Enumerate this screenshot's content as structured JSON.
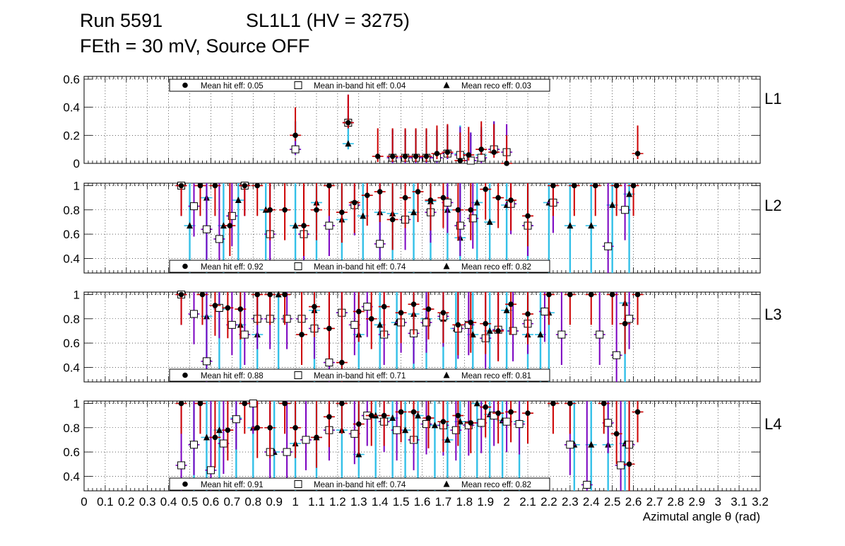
{
  "header": {
    "run": "Run 5591",
    "chamber": "SL1L1 (HV = 3275)",
    "conditions": "FEth = 30 mV, Source OFF"
  },
  "colors": {
    "hit_err": "#cc0000",
    "inband_err": "#7a00c0",
    "reco_err": "#33c0e8",
    "marker": "#000000",
    "grid": "#000000"
  },
  "chart_data": [
    {
      "type": "scatter",
      "panel": "L1",
      "xlim": [
        0,
        3.2
      ],
      "ylim": [
        0,
        0.62
      ],
      "yticks": [
        0,
        0.2,
        0.4,
        0.6
      ],
      "ytick_labels": [
        "0",
        "0.2",
        "0.4",
        "0.6"
      ],
      "legend": {
        "hit": "Mean hit  eff: 0.05",
        "inband": "Mean in-band hit eff: 0.04",
        "reco": "Mean reco eff: 0.03",
        "placement": "top-left"
      },
      "series": [
        {
          "name": "hit",
          "x": [
            1.0,
            1.25,
            1.39,
            1.46,
            1.52,
            1.57,
            1.62,
            1.67,
            1.72,
            1.78,
            1.82,
            1.88,
            1.94,
            2.0,
            2.62
          ],
          "y": [
            0.2,
            0.29,
            0.05,
            0.05,
            0.05,
            0.05,
            0.05,
            0.07,
            0.08,
            0.02,
            0.06,
            0.1,
            0.08,
            0.0,
            0.07
          ]
        },
        {
          "name": "inband",
          "x": [
            1.0,
            1.25,
            1.46,
            1.52,
            1.57,
            1.62,
            1.67,
            1.72,
            1.78,
            1.83,
            1.88,
            1.94,
            2.0
          ],
          "y": [
            0.1,
            0.29,
            0.04,
            0.04,
            0.04,
            0.04,
            0.04,
            0.07,
            0.06,
            0.02,
            0.04,
            0.1,
            0.08
          ]
        },
        {
          "name": "reco",
          "x": [
            1.0,
            1.25,
            1.46,
            1.52,
            1.57,
            1.62,
            1.67,
            1.72,
            1.78,
            1.83,
            1.88,
            1.94
          ],
          "y": [
            0.1,
            0.14,
            0.04,
            0.04,
            0.04,
            0.04,
            0.04,
            0.07,
            0.07,
            0.02,
            0.06,
            0.1
          ]
        }
      ]
    },
    {
      "type": "scatter",
      "panel": "L2",
      "xlim": [
        0,
        3.2
      ],
      "ylim": [
        0.28,
        1.02
      ],
      "yticks": [
        0.4,
        0.6,
        0.8,
        1.0
      ],
      "ytick_labels": [
        "0.4",
        "0.6",
        "0.8",
        "1"
      ],
      "legend": {
        "hit": "Mean hit  eff: 0.92",
        "inband": "Mean in-band hit eff: 0.74",
        "reco": "Mean reco eff: 0.82",
        "placement": "bottom-left"
      },
      "series": [
        {
          "name": "hit",
          "x": [
            0.46,
            0.55,
            0.62,
            0.69,
            0.76,
            0.82,
            0.88,
            0.95,
            1.04,
            1.1,
            1.16,
            1.22,
            1.28,
            1.34,
            1.4,
            1.46,
            1.52,
            1.58,
            1.64,
            1.7,
            1.77,
            1.83,
            1.9,
            1.96,
            2.02,
            2.1,
            2.22,
            2.32,
            2.42,
            2.52,
            2.6
          ],
          "y": [
            1.0,
            1.0,
            1.0,
            0.67,
            1.0,
            1.0,
            0.8,
            0.8,
            0.67,
            0.8,
            1.0,
            0.78,
            0.86,
            0.92,
            0.95,
            0.72,
            0.9,
            0.95,
            0.88,
            0.9,
            0.8,
            0.8,
            0.97,
            0.9,
            0.88,
            0.75,
            1.0,
            1.0,
            1.0,
            1.0,
            1.0
          ]
        },
        {
          "name": "inband",
          "x": [
            0.46,
            0.52,
            0.58,
            0.64,
            0.7,
            0.76,
            0.88,
            1.04,
            1.16,
            1.28,
            1.4,
            1.52,
            1.64,
            1.72,
            1.78,
            1.84,
            2.02,
            2.1,
            2.22,
            2.48,
            2.56
          ],
          "y": [
            1.0,
            0.83,
            0.64,
            0.56,
            0.75,
            1.0,
            0.6,
            0.6,
            0.67,
            0.84,
            0.52,
            0.72,
            0.78,
            0.86,
            0.67,
            0.73,
            0.85,
            0.67,
            0.86,
            0.5,
            0.8
          ]
        },
        {
          "name": "reco",
          "x": [
            0.5,
            0.58,
            0.66,
            0.73,
            0.86,
            1.0,
            1.1,
            1.22,
            1.32,
            1.4,
            1.46,
            1.56,
            1.64,
            1.72,
            1.78,
            1.86,
            1.92,
            2.0,
            2.1,
            2.2,
            2.3,
            2.4,
            2.5,
            2.58
          ],
          "y": [
            0.67,
            0.9,
            0.67,
            0.88,
            0.8,
            0.67,
            0.86,
            0.72,
            0.75,
            0.78,
            0.77,
            0.78,
            0.87,
            0.8,
            0.57,
            0.86,
            0.7,
            0.84,
            0.67,
            0.86,
            0.67,
            0.67,
            0.84,
            0.93
          ]
        }
      ]
    },
    {
      "type": "scatter",
      "panel": "L3",
      "xlim": [
        0,
        3.2
      ],
      "ylim": [
        0.28,
        1.02
      ],
      "yticks": [
        0.4,
        0.6,
        0.8,
        1.0
      ],
      "ytick_labels": [
        "0.4",
        "0.6",
        "0.8",
        "1"
      ],
      "legend": {
        "hit": "Mean hit  eff: 0.88",
        "inband": "Mean in-band hit eff: 0.71",
        "reco": "Mean reco eff: 0.81",
        "placement": "bottom-left"
      },
      "series": [
        {
          "name": "hit",
          "x": [
            0.46,
            0.56,
            0.62,
            0.68,
            0.74,
            0.82,
            0.88,
            0.95,
            1.03,
            1.09,
            1.16,
            1.22,
            1.3,
            1.36,
            1.42,
            1.5,
            1.56,
            1.63,
            1.7,
            1.77,
            1.83,
            1.9,
            1.96,
            2.02,
            2.1,
            2.2,
            2.3,
            2.4,
            2.5,
            2.56,
            2.62
          ],
          "y": [
            1.0,
            1.0,
            0.91,
            0.89,
            0.88,
            1.0,
            1.0,
            1.0,
            0.67,
            0.9,
            0.72,
            0.44,
            0.86,
            0.8,
            0.9,
            0.85,
            0.92,
            0.88,
            0.85,
            0.75,
            0.77,
            0.76,
            0.7,
            0.92,
            0.84,
            1.0,
            1.0,
            1.0,
            1.0,
            0.76,
            1.0
          ]
        },
        {
          "name": "inband",
          "x": [
            0.46,
            0.52,
            0.58,
            0.64,
            0.7,
            0.76,
            0.82,
            0.88,
            0.96,
            1.03,
            1.09,
            1.16,
            1.22,
            1.28,
            1.34,
            1.42,
            1.5,
            1.56,
            1.62,
            1.7,
            1.77,
            1.82,
            1.9,
            1.96,
            2.03,
            2.1,
            2.18,
            2.26,
            2.44,
            2.52,
            2.58
          ],
          "y": [
            1.0,
            0.84,
            0.45,
            0.89,
            0.75,
            0.67,
            0.8,
            0.8,
            0.8,
            0.8,
            0.72,
            0.44,
            0.85,
            0.75,
            0.9,
            0.67,
            0.77,
            0.68,
            0.77,
            0.82,
            0.72,
            0.75,
            0.64,
            0.71,
            0.7,
            0.76,
            0.86,
            0.67,
            0.67,
            0.5,
            0.8
          ]
        },
        {
          "name": "reco",
          "x": [
            0.58,
            0.64,
            0.74,
            0.82,
            0.92,
            1.09,
            1.22,
            1.3,
            1.4,
            1.48,
            1.56,
            1.62,
            1.7,
            1.76,
            1.84,
            1.92,
            2.0,
            2.1,
            2.16,
            2.2,
            2.56
          ],
          "y": [
            0.82,
            0.88,
            0.75,
            0.67,
            1.0,
            0.87,
            0.85,
            0.67,
            0.75,
            0.77,
            0.84,
            0.8,
            0.8,
            0.72,
            0.67,
            0.7,
            0.87,
            0.67,
            0.67,
            0.85,
            0.93
          ]
        }
      ]
    },
    {
      "type": "scatter",
      "panel": "L4",
      "xlim": [
        0,
        3.2
      ],
      "ylim": [
        0.28,
        1.02
      ],
      "yticks": [
        0.4,
        0.6,
        0.8,
        1.0
      ],
      "ytick_labels": [
        "0.4",
        "0.6",
        "0.8",
        "1"
      ],
      "xticks": [
        0,
        0.1,
        0.2,
        0.3,
        0.4,
        0.5,
        0.6,
        0.7,
        0.8,
        0.9,
        1.0,
        1.1,
        1.2,
        1.3,
        1.4,
        1.5,
        1.6,
        1.7,
        1.8,
        1.9,
        2.0,
        2.1,
        2.2,
        2.3,
        2.4,
        2.5,
        2.6,
        2.7,
        2.8,
        2.9,
        3.0,
        3.1,
        3.2
      ],
      "xtick_labels": [
        "0",
        "0.1",
        "0.2",
        "0.3",
        "0.4",
        "0.5",
        "0.6",
        "0.7",
        "0.8",
        "0.9",
        "1",
        "1.1",
        "1.2",
        "1.3",
        "1.4",
        "1.5",
        "1.6",
        "1.7",
        "1.8",
        "1.9",
        "2",
        "2.1",
        "2.2",
        "2.3",
        "2.4",
        "2.5",
        "2.6",
        "2.7",
        "2.8",
        "2.9",
        "3",
        "3.1",
        "3.2"
      ],
      "xlabel": "Azimutal angle θ (rad)",
      "legend": {
        "hit": "Mean hit  eff: 0.91",
        "inband": "Mean in-band hit eff: 0.74",
        "reco": "Mean reco eff: 0.82",
        "placement": "bottom-left"
      },
      "series": [
        {
          "name": "hit",
          "x": [
            0.46,
            0.55,
            0.62,
            0.68,
            0.76,
            0.82,
            0.88,
            0.95,
            1.0,
            1.1,
            1.16,
            1.22,
            1.3,
            1.36,
            1.42,
            1.5,
            1.56,
            1.63,
            1.7,
            1.77,
            1.83,
            1.9,
            1.96,
            2.02,
            2.1,
            2.22,
            2.3,
            2.46,
            2.52,
            2.58,
            2.62
          ],
          "y": [
            1.0,
            1.0,
            0.72,
            0.78,
            1.0,
            0.8,
            0.8,
            1.0,
            0.8,
            0.72,
            0.89,
            1.0,
            0.83,
            0.9,
            0.9,
            0.93,
            0.93,
            0.88,
            0.85,
            0.9,
            0.84,
            0.97,
            0.92,
            0.93,
            0.92,
            1.0,
            1.0,
            1.0,
            0.75,
            0.5,
            0.93
          ]
        },
        {
          "name": "inband",
          "x": [
            0.46,
            0.52,
            0.6,
            0.66,
            0.72,
            0.8,
            0.88,
            0.96,
            1.05,
            1.16,
            1.28,
            1.34,
            1.42,
            1.48,
            1.56,
            1.62,
            1.7,
            1.76,
            1.82,
            1.88,
            1.94,
            2.0,
            2.06,
            2.3,
            2.38,
            2.48,
            2.54,
            2.58
          ],
          "y": [
            0.49,
            0.66,
            0.45,
            0.67,
            0.87,
            1.0,
            0.6,
            0.6,
            0.7,
            0.78,
            0.75,
            0.9,
            0.85,
            0.78,
            0.7,
            0.83,
            0.82,
            0.78,
            0.82,
            0.84,
            0.9,
            0.85,
            0.83,
            0.66,
            0.33,
            0.84,
            0.49,
            0.66
          ]
        },
        {
          "name": "reco",
          "x": [
            0.52,
            0.58,
            0.64,
            0.72,
            0.8,
            0.9,
            1.0,
            1.1,
            1.22,
            1.3,
            1.38,
            1.46,
            1.52,
            1.58,
            1.66,
            1.72,
            1.78,
            1.86,
            1.92,
            1.98,
            2.06,
            2.32,
            2.4,
            2.48,
            2.56
          ],
          "y": [
            0.66,
            0.72,
            0.78,
            0.88,
            0.8,
            0.6,
            0.67,
            0.72,
            0.78,
            0.58,
            0.9,
            0.88,
            0.78,
            0.9,
            0.82,
            0.7,
            0.85,
            1.0,
            0.91,
            0.86,
            0.85,
            0.66,
            0.66,
            0.66,
            0.67
          ]
        }
      ]
    }
  ],
  "panel_labels": [
    "L1",
    "L2",
    "L3",
    "L4"
  ]
}
